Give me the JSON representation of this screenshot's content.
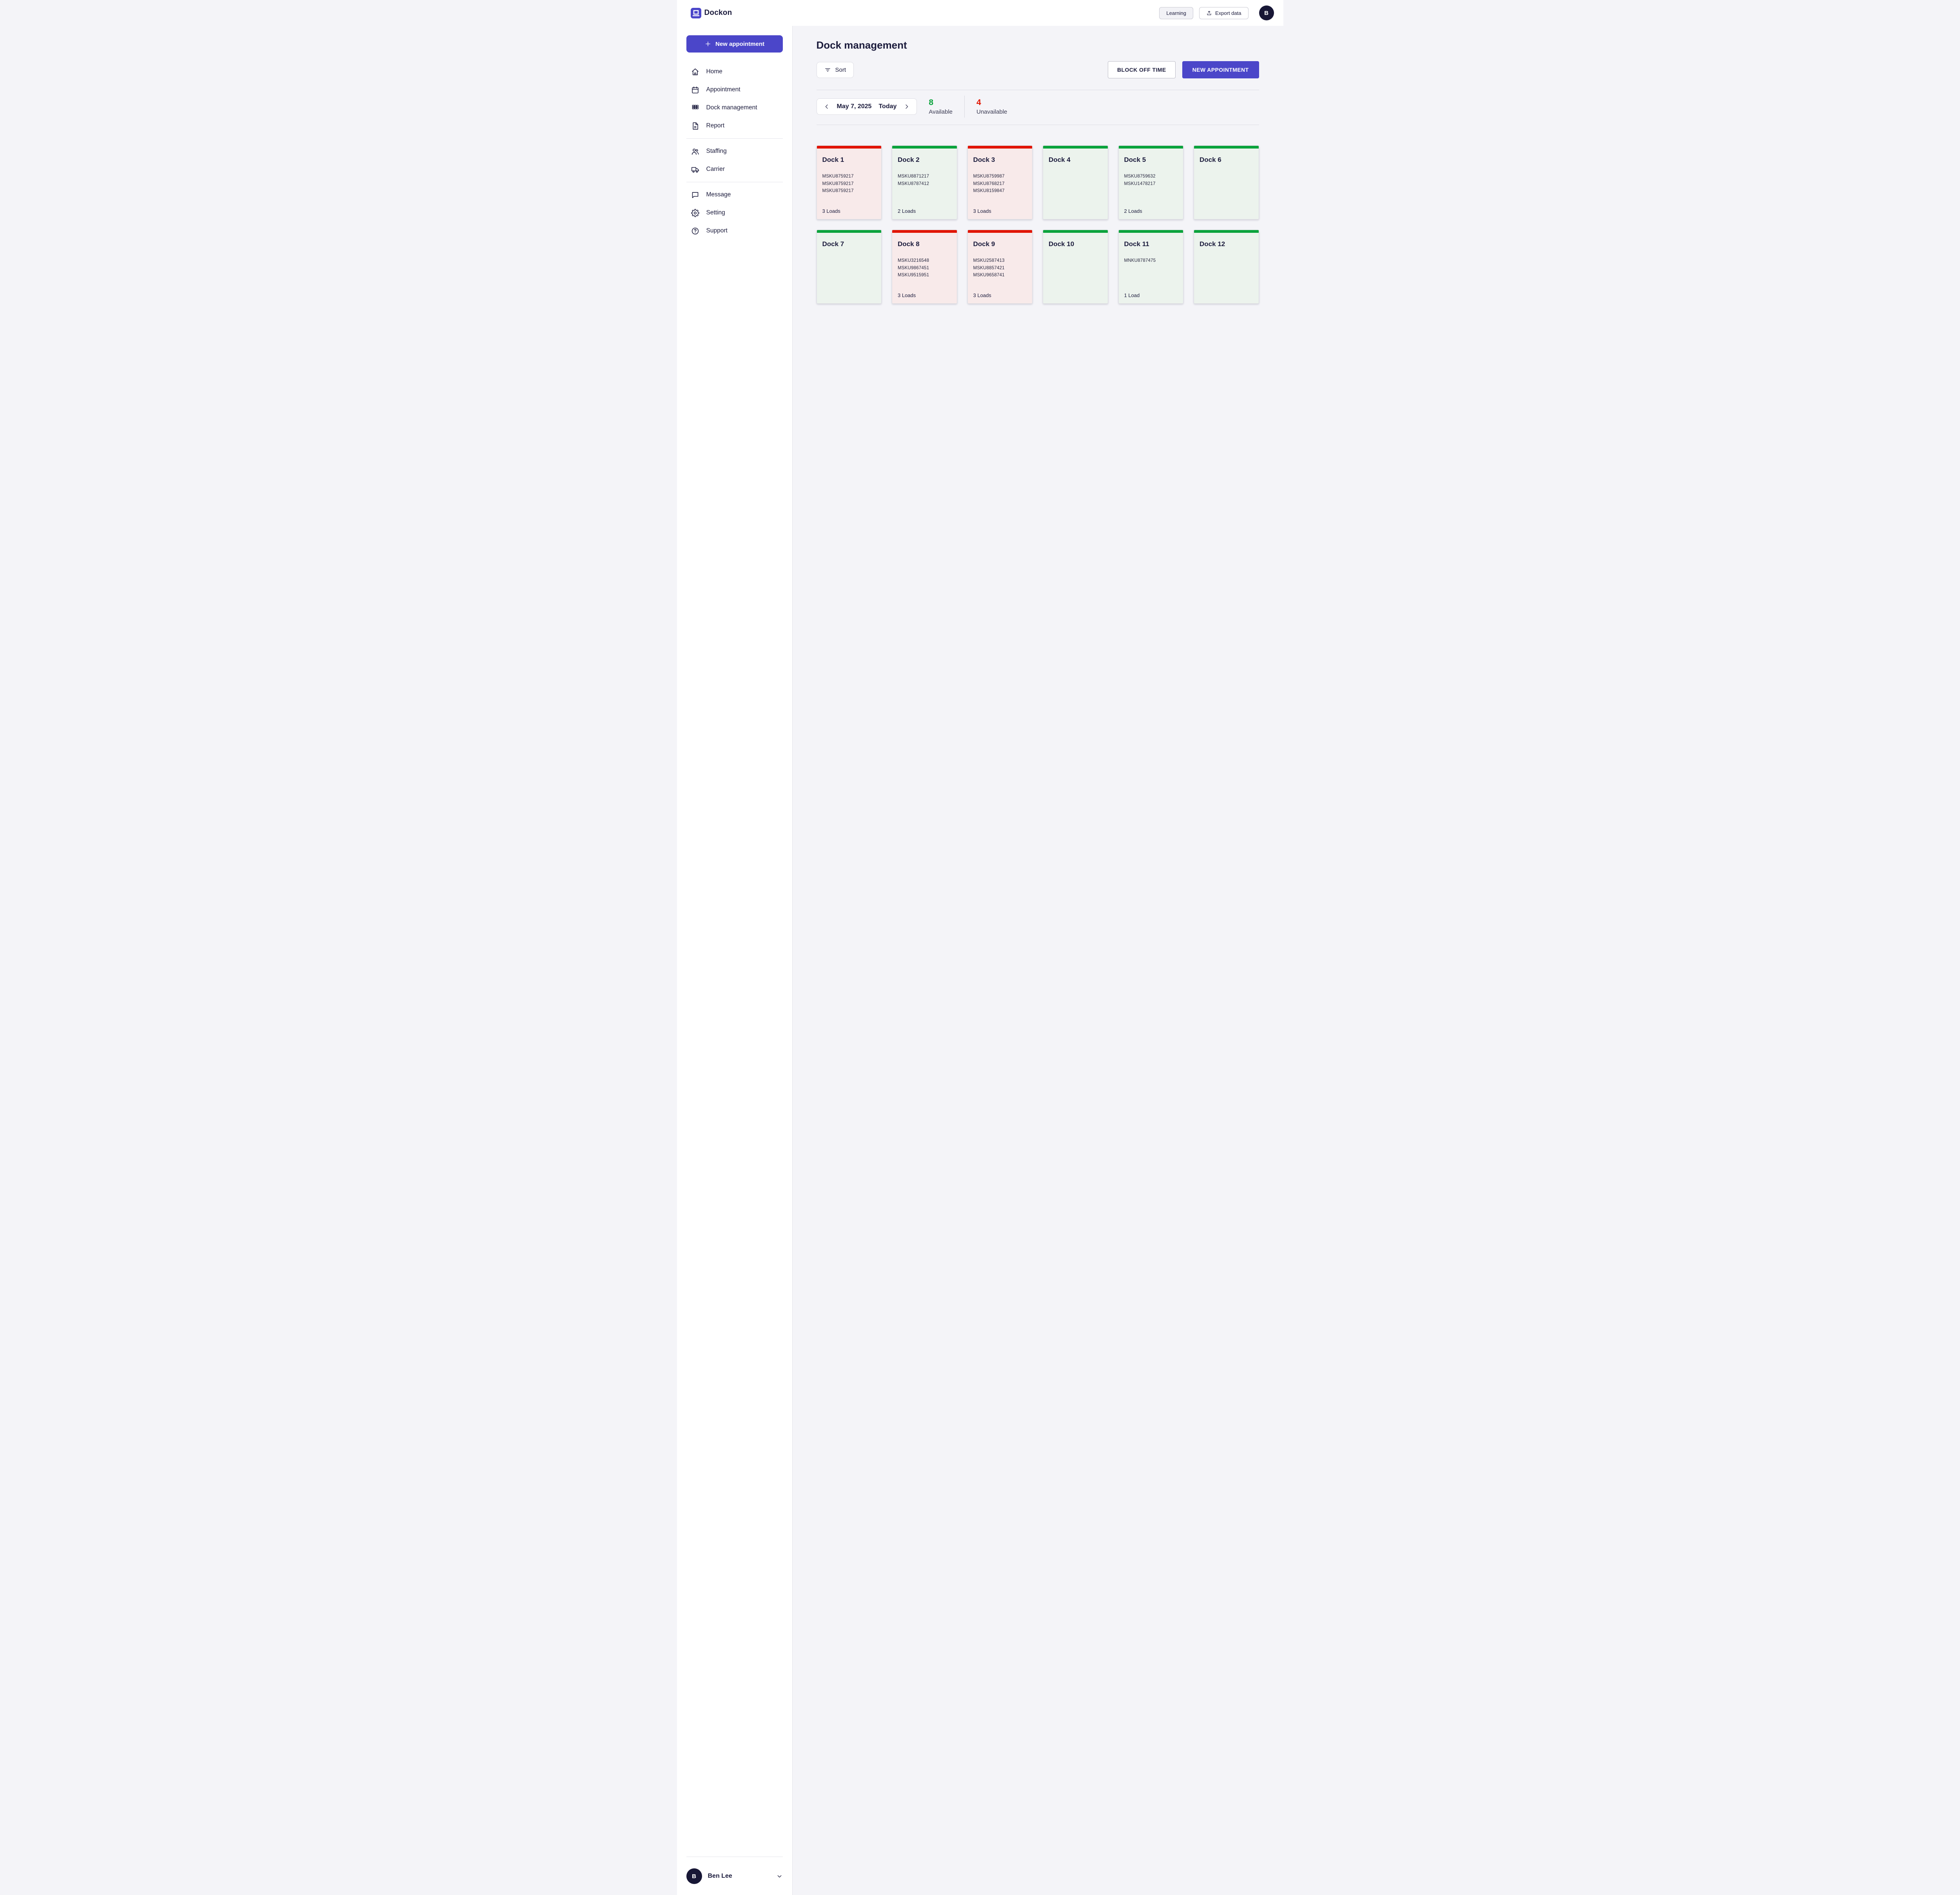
{
  "header": {
    "brand": "Dockon",
    "learning_label": "Learning",
    "export_label": "Export data",
    "avatar_initial": "B"
  },
  "sidebar": {
    "new_appointment_label": "New appointment",
    "groups": [
      {
        "items": [
          {
            "label": "Home",
            "icon": "home-icon"
          },
          {
            "label": "Appointment",
            "icon": "calendar-icon"
          },
          {
            "label": "Dock management",
            "icon": "grid-icon"
          },
          {
            "label": "Report",
            "icon": "report-icon"
          }
        ]
      },
      {
        "items": [
          {
            "label": "Staffing",
            "icon": "people-icon"
          },
          {
            "label": "Carrier",
            "icon": "truck-icon"
          }
        ]
      },
      {
        "items": [
          {
            "label": "Message",
            "icon": "chat-icon"
          },
          {
            "label": "Setting",
            "icon": "gear-icon"
          },
          {
            "label": "Support",
            "icon": "help-icon"
          }
        ]
      }
    ],
    "user": {
      "initial": "B",
      "name": "Ben Lee"
    }
  },
  "main": {
    "title": "Dock management",
    "sort_label": "Sort",
    "block_off_label": "BLOCK OFF TIME",
    "new_appointment_label": "NEW APPOINTMENT",
    "date": "May 7, 2025",
    "today_label": "Today",
    "stats": {
      "available_count": "8",
      "available_label": "Available",
      "unavailable_count": "4",
      "unavailable_label": "Unavailable"
    },
    "docks": [
      {
        "name": "Dock 1",
        "status": "unavailable",
        "loads": [
          "MSKU8759217",
          "MSKU8759217",
          "MSKU8759217"
        ],
        "loads_label": "3 Loads"
      },
      {
        "name": "Dock 2",
        "status": "available",
        "loads": [
          "MSKU8871217",
          "MSKU8787412"
        ],
        "loads_label": "2 Loads"
      },
      {
        "name": "Dock 3",
        "status": "unavailable",
        "loads": [
          "MSKU8759987",
          "MSKU8768217",
          "MSKU8159847"
        ],
        "loads_label": "3 Loads"
      },
      {
        "name": "Dock 4",
        "status": "available",
        "loads": [],
        "loads_label": ""
      },
      {
        "name": "Dock 5",
        "status": "available",
        "loads": [
          "MSKU8759632",
          "MSKU1478217"
        ],
        "loads_label": "2 Loads"
      },
      {
        "name": "Dock 6",
        "status": "available",
        "loads": [],
        "loads_label": ""
      },
      {
        "name": "Dock 7",
        "status": "available",
        "loads": [],
        "loads_label": ""
      },
      {
        "name": "Dock 8",
        "status": "unavailable",
        "loads": [
          "MSKU3216548",
          "MSKU9867451",
          "MSKU9515951"
        ],
        "loads_label": "3 Loads"
      },
      {
        "name": "Dock 9",
        "status": "unavailable",
        "loads": [
          "MSKU2587413",
          "MSKU8857421",
          "MSKU9658741"
        ],
        "loads_label": "3 Loads"
      },
      {
        "name": "Dock 10",
        "status": "available",
        "loads": [],
        "loads_label": ""
      },
      {
        "name": "Dock 11",
        "status": "available",
        "loads": [
          "MNKU8787475"
        ],
        "loads_label": "1 Load"
      },
      {
        "name": "Dock 12",
        "status": "available",
        "loads": [],
        "loads_label": ""
      }
    ]
  },
  "colors": {
    "primary": "#4b46c9",
    "navy": "#1b1b3c",
    "available_green": "#0aa33c",
    "unavailable_red": "#e11400",
    "card_green_bg": "#ecf3ed",
    "card_red_bg": "#f8eaea",
    "page_bg": "#f4f4f8"
  }
}
